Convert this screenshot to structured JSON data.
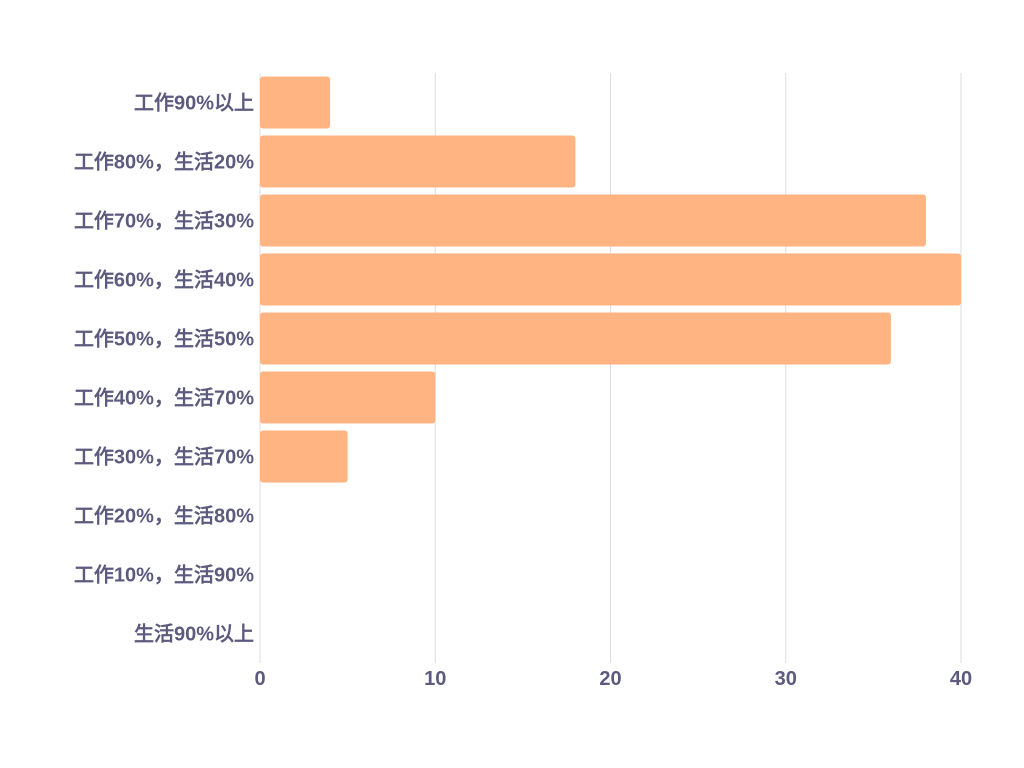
{
  "colors": {
    "bar": "#ffb482",
    "label": "#5c5a7e",
    "grid": "#dddddd"
  },
  "chart_data": {
    "type": "bar",
    "orientation": "horizontal",
    "categories": [
      "工作90%以上",
      "工作80%，生活20%",
      "工作70%，生活30%",
      "工作60%，生活40%",
      "工作50%，生活50%",
      "工作40%，生活70%",
      "工作30%，生活70%",
      "工作20%，生活80%",
      "工作10%，生活90%",
      "生活90%以上"
    ],
    "values": [
      4,
      18,
      38,
      40,
      36,
      10,
      5,
      0,
      0,
      0
    ],
    "xlim": [
      0,
      40
    ],
    "xticks": [
      "0",
      "10",
      "20",
      "30",
      "40"
    ],
    "grid": "vertical",
    "title": "",
    "xlabel": "",
    "ylabel": ""
  }
}
